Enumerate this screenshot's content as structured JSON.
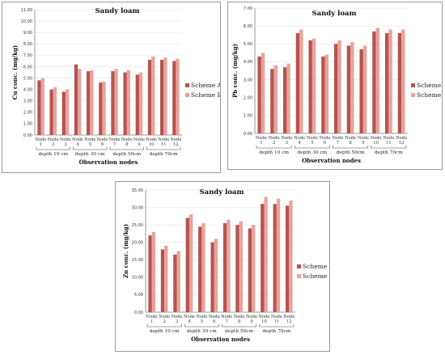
{
  "colors": {
    "scheme_a": "#b5544f",
    "scheme_b": "#e8a39c",
    "axis": "#7f7f7f",
    "grid": "#e6e6e6",
    "frame": "#9a9a9a"
  },
  "chart_data": [
    {
      "id": "cu",
      "type": "bar",
      "title": "Sandy loam",
      "ylabel": "Cu  conc. (mg/kg)",
      "xlabel": "Observation nodes",
      "ylim": [
        0,
        11
      ],
      "ytick_labels": [
        "0.00",
        "1.00",
        "2.00",
        "3.00",
        "4.00",
        "5.00",
        "6.00",
        "7.00",
        "8.00",
        "9.00",
        "10.00",
        "11.00"
      ],
      "legend_position": "right",
      "categories": [
        [
          "Node",
          "1"
        ],
        [
          "Node",
          "2"
        ],
        [
          "Node",
          "3"
        ],
        [
          "Node",
          "4"
        ],
        [
          "Node",
          "5"
        ],
        [
          "Node",
          "6"
        ],
        [
          "Node",
          "7"
        ],
        [
          "Node",
          "8"
        ],
        [
          "Node",
          "9"
        ],
        [
          "Node",
          "10"
        ],
        [
          "Node",
          "11"
        ],
        [
          "Node",
          "12"
        ]
      ],
      "groups": [
        "depth 10 cm",
        "depth 30 cm",
        "depth 50cm",
        "depth 70cm"
      ],
      "series": [
        {
          "name": "Scheme A",
          "values": [
            4.8,
            4.0,
            3.8,
            6.2,
            5.6,
            4.6,
            5.6,
            5.5,
            5.3,
            6.6,
            6.6,
            6.5
          ]
        },
        {
          "name": "Scheme B",
          "values": [
            5.0,
            4.2,
            4.0,
            5.8,
            5.7,
            4.7,
            5.8,
            5.7,
            5.5,
            6.9,
            6.8,
            6.7
          ]
        }
      ]
    },
    {
      "id": "pb",
      "type": "bar",
      "title": "Sandy loam",
      "ylabel": "Pb  conc. (mg/kg)",
      "xlabel": "Observation nodes",
      "ylim": [
        0,
        7
      ],
      "ytick_labels": [
        "0.00",
        "1.00",
        "2.00",
        "3.00",
        "4.00",
        "5.00",
        "6.00",
        "7.00"
      ],
      "legend_position": "right",
      "categories": [
        [
          "Node",
          "1"
        ],
        [
          "Node",
          "2"
        ],
        [
          "Node",
          "3"
        ],
        [
          "Node",
          "4"
        ],
        [
          "Node",
          "5"
        ],
        [
          "Node",
          "6"
        ],
        [
          "Node",
          "7"
        ],
        [
          "Node",
          "8"
        ],
        [
          "Node",
          "9"
        ],
        [
          "Node",
          "10"
        ],
        [
          "Node",
          "11"
        ],
        [
          "Node",
          "12"
        ]
      ],
      "groups": [
        "depth 10 cm",
        "depth 30 cm",
        "depth 50cm",
        "depth 70cm"
      ],
      "series": [
        {
          "name": "Scheme A",
          "values": [
            4.3,
            3.6,
            3.7,
            5.6,
            5.2,
            4.3,
            5.0,
            4.9,
            4.7,
            5.7,
            5.6,
            5.6
          ]
        },
        {
          "name": "Scheme B",
          "values": [
            4.5,
            3.8,
            3.9,
            5.8,
            5.3,
            4.4,
            5.2,
            5.1,
            4.9,
            5.9,
            5.8,
            5.8
          ]
        }
      ]
    },
    {
      "id": "zn",
      "type": "bar",
      "title": "Sandy loam",
      "ylabel": "Zn  conc. (mg/kg)",
      "xlabel": "Observation nodes",
      "ylim": [
        0,
        35
      ],
      "ytick_labels": [
        "0.00",
        "5.00",
        "10.00",
        "15.00",
        "20.00",
        "25.00",
        "30.00",
        "35.00"
      ],
      "legend_position": "right",
      "categories": [
        [
          "Node",
          "1"
        ],
        [
          "Node",
          "2"
        ],
        [
          "Node",
          "3"
        ],
        [
          "Node",
          "4"
        ],
        [
          "Node",
          "5"
        ],
        [
          "Node",
          "6"
        ],
        [
          "Node",
          "7"
        ],
        [
          "Node",
          "8"
        ],
        [
          "Node",
          "9"
        ],
        [
          "Node",
          "10"
        ],
        [
          "Node",
          "11"
        ],
        [
          "Node",
          "12"
        ]
      ],
      "groups": [
        "depth 10 cm",
        "depth 30 cm",
        "depth 50cm",
        "depth 70cm"
      ],
      "series": [
        {
          "name": "Scheme A",
          "values": [
            22.0,
            18.0,
            16.5,
            27.0,
            24.5,
            20.0,
            25.5,
            25.0,
            24.0,
            31.0,
            31.0,
            30.5
          ]
        },
        {
          "name": "Scheme B",
          "values": [
            23.0,
            19.0,
            17.5,
            28.0,
            25.5,
            21.0,
            26.5,
            26.0,
            25.0,
            33.0,
            32.5,
            32.0
          ]
        }
      ]
    }
  ]
}
